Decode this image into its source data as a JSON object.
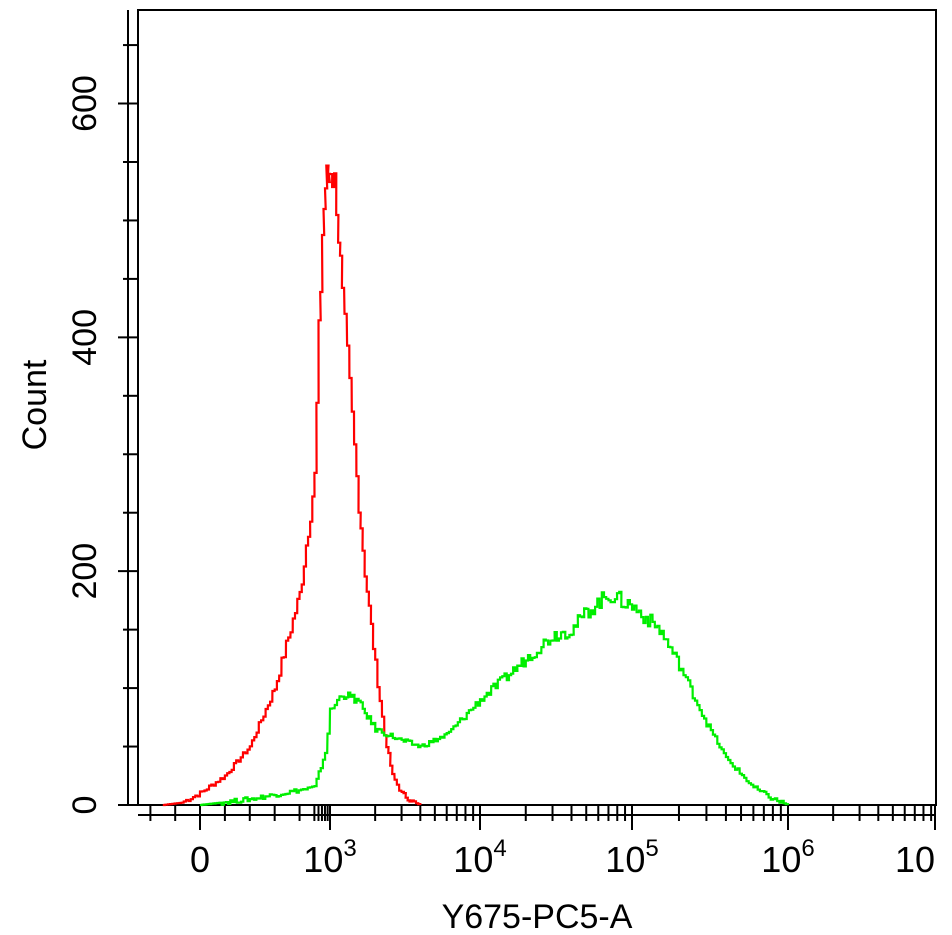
{
  "chart_data": {
    "type": "line",
    "title": "",
    "xlabel": "Y675-PC5-A",
    "ylabel": "Count",
    "x_scale": "biexponential",
    "ylim": [
      0,
      680
    ],
    "grid": false,
    "x_tick_labels": [
      {
        "base": "0",
        "exp": ""
      },
      {
        "base": "10",
        "exp": "3"
      },
      {
        "base": "10",
        "exp": "4"
      },
      {
        "base": "10",
        "exp": "5"
      },
      {
        "base": "10",
        "exp": "6"
      },
      {
        "base": "10",
        "exp": ""
      }
    ],
    "y_tick_labels": [
      "0",
      "200",
      "400",
      "600"
    ],
    "y_tick_values": [
      0,
      200,
      400,
      600
    ],
    "series": [
      {
        "color": "#ff0000",
        "points": [
          [
            -300,
            0
          ],
          [
            -150,
            2
          ],
          [
            0,
            10
          ],
          [
            100,
            25
          ],
          [
            200,
            50
          ],
          [
            300,
            100
          ],
          [
            400,
            180
          ],
          [
            500,
            280
          ],
          [
            600,
            400
          ],
          [
            700,
            490
          ],
          [
            800,
            530
          ],
          [
            900,
            535
          ],
          [
            1000,
            550
          ],
          [
            1100,
            520
          ],
          [
            1200,
            430
          ],
          [
            1300,
            380
          ],
          [
            1500,
            280
          ],
          [
            1700,
            200
          ],
          [
            2000,
            120
          ],
          [
            2300,
            60
          ],
          [
            2600,
            25
          ],
          [
            3000,
            10
          ],
          [
            3500,
            3
          ],
          [
            4000,
            0
          ]
        ]
      },
      {
        "color": "#00ee00",
        "points": [
          [
            0,
            0
          ],
          [
            200,
            5
          ],
          [
            500,
            15
          ],
          [
            800,
            45
          ],
          [
            1000,
            80
          ],
          [
            1200,
            95
          ],
          [
            1500,
            90
          ],
          [
            2000,
            65
          ],
          [
            3000,
            55
          ],
          [
            4000,
            50
          ],
          [
            6000,
            60
          ],
          [
            10000,
            90
          ],
          [
            15000,
            110
          ],
          [
            20000,
            125
          ],
          [
            30000,
            145
          ],
          [
            40000,
            150
          ],
          [
            50000,
            165
          ],
          [
            70000,
            180
          ],
          [
            100000,
            170
          ],
          [
            150000,
            150
          ],
          [
            200000,
            120
          ],
          [
            300000,
            70
          ],
          [
            400000,
            40
          ],
          [
            600000,
            15
          ],
          [
            800000,
            5
          ],
          [
            1000000,
            0
          ]
        ]
      }
    ]
  }
}
